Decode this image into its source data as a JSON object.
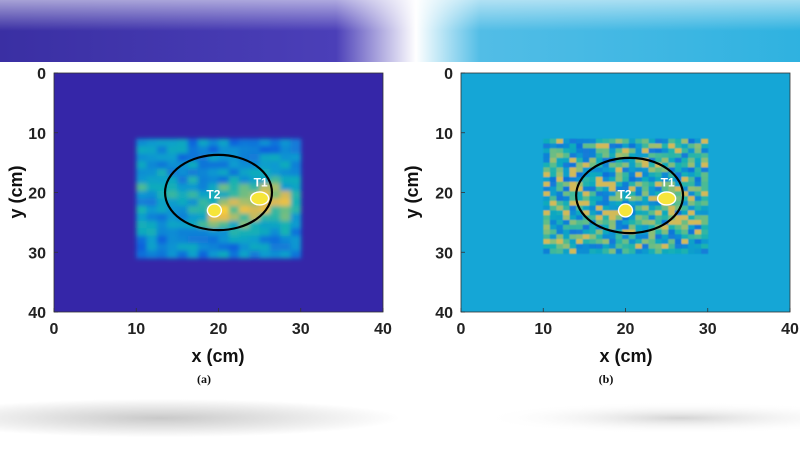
{
  "chart_data": [
    {
      "type": "heatmap",
      "caption": "(a)",
      "xlabel": "x (cm)",
      "ylabel": "y (cm)",
      "xlim": [
        0,
        40
      ],
      "ylim": [
        0,
        40
      ],
      "y_reversed": true,
      "xticks": [
        "0",
        "10",
        "20",
        "30",
        "40"
      ],
      "yticks": [
        "0",
        "10",
        "20",
        "30",
        "40"
      ],
      "background_color": "#3526a8",
      "active_region": {
        "x": [
          10,
          30
        ],
        "y": [
          11,
          30
        ]
      },
      "ellipse": {
        "cx": 20,
        "cy": 20,
        "rx": 6.5,
        "ry": 6.3
      },
      "targets": [
        {
          "label": "T1",
          "x": 25,
          "y": 21
        },
        {
          "label": "T2",
          "x": 19.5,
          "y": 23
        }
      ]
    },
    {
      "type": "heatmap",
      "caption": "(b)",
      "xlabel": "x (cm)",
      "ylabel": "y (cm)",
      "xlim": [
        0,
        40
      ],
      "ylim": [
        0,
        40
      ],
      "y_reversed": true,
      "xticks": [
        "0",
        "10",
        "20",
        "30",
        "40"
      ],
      "yticks": [
        "0",
        "10",
        "20",
        "30",
        "40"
      ],
      "background_color": "#15a6d6",
      "active_region": {
        "x": [
          10,
          30
        ],
        "y": [
          11,
          30
        ]
      },
      "ellipse": {
        "cx": 20.5,
        "cy": 20.5,
        "rx": 6.5,
        "ry": 6.3
      },
      "targets": [
        {
          "label": "T1",
          "x": 25,
          "y": 21
        },
        {
          "label": "T2",
          "x": 20,
          "y": 23
        }
      ]
    }
  ]
}
